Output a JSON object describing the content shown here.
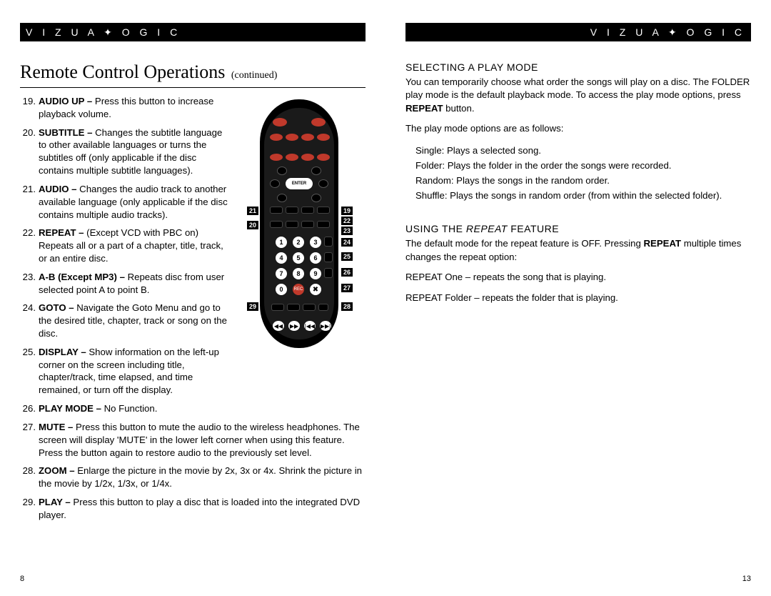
{
  "brand": "V I Z U A ✦ O G I C",
  "left_page": {
    "title_main": "Remote Control Operations",
    "title_cont": "(continued)",
    "items_top": [
      {
        "n": "19.",
        "label": "AUDIO UP –",
        "text": " Press this button to increase playback volume."
      },
      {
        "n": "20.",
        "label": "SUBTITLE –",
        "text": " Changes the subtitle language to other available languages or turns the subtitles off (only applicable if the disc contains multiple subtitle languages)."
      },
      {
        "n": "21.",
        "label": "AUDIO –",
        "text": " Changes the audio track to another available language (only applicable if the disc contains multiple audio tracks)."
      },
      {
        "n": "22.",
        "label": "REPEAT –",
        "text": " (Except VCD with PBC on) Repeats all or a part of a chapter, title, track, or an entire disc."
      },
      {
        "n": "23.",
        "label": "A-B (Except MP3) –",
        "text": " Repeats disc from user selected point A to point B."
      },
      {
        "n": "24.",
        "label": "GOTO –",
        "text": " Navigate the Goto Menu and go to the desired title, chapter, track or song on the disc."
      },
      {
        "n": "25.",
        "label": "DISPLAY –",
        "text": " Show information on the left-up corner on the screen including title, chapter/track, time elapsed, and time remained, or turn off the display."
      }
    ],
    "items_full": [
      {
        "n": "26.",
        "label": "PLAY MODE –",
        "text": " No Function."
      },
      {
        "n": "27.",
        "label": "MUTE –",
        "text": " Press this button to mute the audio to the wireless headphones. The screen will display 'MUTE' in the lower left corner when using this feature. Press the button again to restore audio to the previously set level."
      },
      {
        "n": "28.",
        "label": "ZOOM –",
        "text": " Enlarge the picture in the movie by 2x, 3x or 4x. Shrink the picture in the movie by 1/2x, 1/3x, or 1/4x."
      },
      {
        "n": "29.",
        "label": "PLAY –",
        "text": " Press this button to play a disc that is loaded into the integrated DVD player."
      }
    ],
    "page_num": "8"
  },
  "right_page": {
    "sec1_hd": "SELECTING A PLAY MODE",
    "sec1_p1_a": "You can temporarily choose what order the songs will play on a disc. The FOLDER play mode is the default playback mode. To access the play mode options, press ",
    "sec1_p1_bold": "REPEAT",
    "sec1_p1_b": " button.",
    "sec1_p2": "The play mode options are as follows:",
    "sec1_opts": [
      "Single: Plays a selected song.",
      "Folder: Plays the folder in the order the songs were recorded.",
      "Random: Plays the songs in the random order.",
      "Shuffle: Plays the songs in random order (from within the selected folder)."
    ],
    "sec2_hd_a": "USING THE ",
    "sec2_hd_i": "REPEAT",
    "sec2_hd_b": " FEATURE",
    "sec2_p1_a": "The default mode for the repeat feature is OFF. Pressing ",
    "sec2_p1_bold": "REPEAT",
    "sec2_p1_b": " multiple times changes the repeat option:",
    "sec2_p2": "REPEAT One – repeats the song that is playing.",
    "sec2_p3": "REPEAT Folder – repeats the folder that is playing.",
    "page_num": "13"
  },
  "callouts_left": [
    "21",
    "20",
    "29"
  ],
  "callouts_right": [
    "19",
    "22",
    "23",
    "24",
    "25",
    "26",
    "27",
    "28"
  ],
  "remote_tiny_labels": [
    "MONITOR",
    "POWER",
    "SOURCE",
    "ZOOM",
    "PICTURE",
    "SELECT",
    "DOWN",
    "UP",
    "SELECT",
    "FM",
    "FREQUENCY",
    "AUX DVD",
    "POWER",
    "ON/OFF",
    "SELECT",
    "AUX DVD",
    "EJECT",
    "RETURN",
    "ENTER",
    "SETUP",
    "TITLE",
    "MENU",
    "AUDIO",
    "DOWN",
    "UP",
    "SUBTITLE",
    "AUDIO",
    "REPEAT",
    "A-B",
    "GOTO",
    "DISPLAY",
    "PLAYMODE",
    "MUTE",
    "REC",
    "PLAY",
    "STOP",
    "PAUSE",
    "SLOW",
    "FR",
    "FF",
    "PREV",
    "NEXT"
  ]
}
